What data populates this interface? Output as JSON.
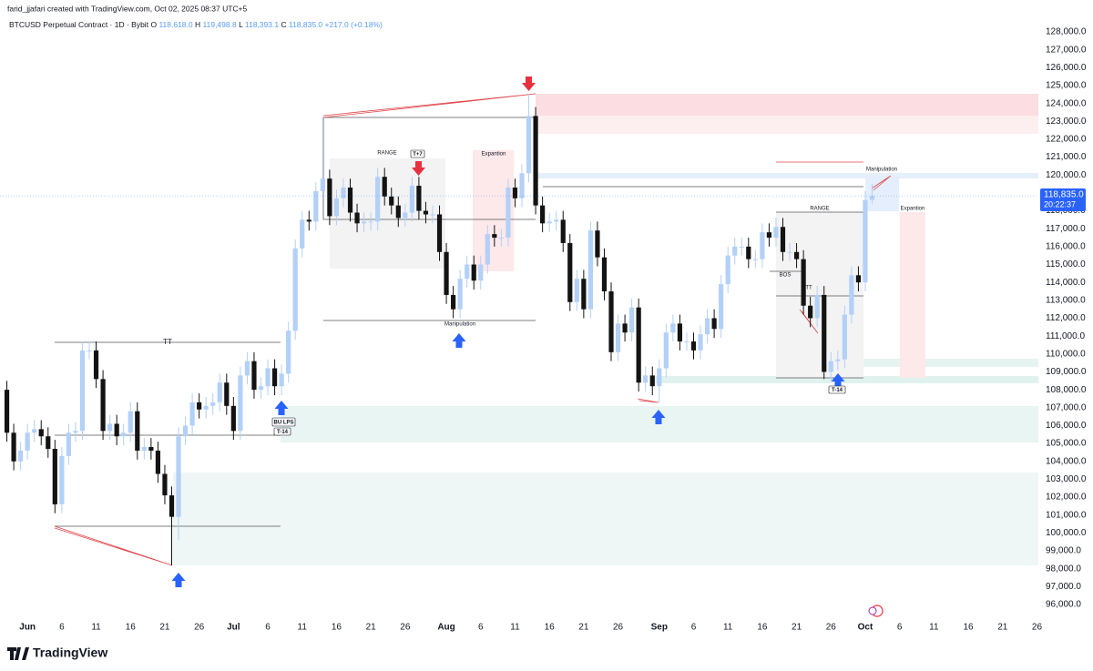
{
  "header": {
    "credit": "farid_jjafari created with TradingView.com, Oct 02, 2025 08:37 UTC+5"
  },
  "footer": {
    "logo": "TradingView"
  },
  "chart_data": {
    "type": "candlestick",
    "title": "BTCUSD Perpetual Contract · 1D · Bybit",
    "legend": [
      {
        "key": "O",
        "text": "118,618.0"
      },
      {
        "key": "H",
        "text": "119,498.8"
      },
      {
        "key": "L",
        "text": "118,393.1"
      },
      {
        "key": "C",
        "text": "118,835.0"
      }
    ],
    "change": "+217.0 (+0.18%)",
    "last_price_label": "118,835.0",
    "countdown": "20:22:37",
    "up_color": "#b3d0f7",
    "down_color": "#131313",
    "grid": false,
    "xlim": [
      "05-28",
      "10-27"
    ],
    "ylim": [
      96000,
      128000
    ],
    "xticks": [
      {
        "value": "06-01",
        "label": "Jun"
      },
      {
        "value": "06-06",
        "label": "6"
      },
      {
        "value": "06-11",
        "label": "11"
      },
      {
        "value": "06-16",
        "label": "16"
      },
      {
        "value": "06-21",
        "label": "21"
      },
      {
        "value": "06-26",
        "label": "26"
      },
      {
        "value": "07-01",
        "label": "Jul"
      },
      {
        "value": "07-06",
        "label": "6"
      },
      {
        "value": "07-11",
        "label": "11"
      },
      {
        "value": "07-16",
        "label": "16"
      },
      {
        "value": "07-21",
        "label": "21"
      },
      {
        "value": "07-26",
        "label": "26"
      },
      {
        "value": "08-01",
        "label": "Aug"
      },
      {
        "value": "08-06",
        "label": "6"
      },
      {
        "value": "08-11",
        "label": "11"
      },
      {
        "value": "08-16",
        "label": "16"
      },
      {
        "value": "08-21",
        "label": "21"
      },
      {
        "value": "08-26",
        "label": "26"
      },
      {
        "value": "09-01",
        "label": "Sep"
      },
      {
        "value": "09-06",
        "label": "6"
      },
      {
        "value": "09-11",
        "label": "11"
      },
      {
        "value": "09-16",
        "label": "16"
      },
      {
        "value": "09-21",
        "label": "21"
      },
      {
        "value": "09-26",
        "label": "26"
      },
      {
        "value": "10-01",
        "label": "Oct"
      },
      {
        "value": "10-06",
        "label": "6"
      },
      {
        "value": "10-11",
        "label": "11"
      },
      {
        "value": "10-16",
        "label": "16"
      },
      {
        "value": "10-21",
        "label": "21"
      },
      {
        "value": "10-26",
        "label": "26"
      }
    ],
    "yticks": [
      {
        "value": 96000,
        "label": "96,000.0"
      },
      {
        "value": 97000,
        "label": "97,000.0"
      },
      {
        "value": 98000,
        "label": "98,000.0"
      },
      {
        "value": 99000,
        "label": "99,000.0"
      },
      {
        "value": 100000,
        "label": "100,000.0"
      },
      {
        "value": 101000,
        "label": "101,000.0"
      },
      {
        "value": 102000,
        "label": "102,000.0"
      },
      {
        "value": 103000,
        "label": "103,000.0"
      },
      {
        "value": 104000,
        "label": "104,000.0"
      },
      {
        "value": 105000,
        "label": "105,000.0"
      },
      {
        "value": 106000,
        "label": "106,000.0"
      },
      {
        "value": 107000,
        "label": "107,000.0"
      },
      {
        "value": 108000,
        "label": "108,000.0"
      },
      {
        "value": 109000,
        "label": "109,000.0"
      },
      {
        "value": 110000,
        "label": "110,000.0"
      },
      {
        "value": 111000,
        "label": "111,000.0"
      },
      {
        "value": 112000,
        "label": "112,000.0"
      },
      {
        "value": 113000,
        "label": "113,000.0"
      },
      {
        "value": 114000,
        "label": "114,000.0"
      },
      {
        "value": 115000,
        "label": "115,000.0"
      },
      {
        "value": 116000,
        "label": "116,000.0"
      },
      {
        "value": 117000,
        "label": "117,000.0"
      },
      {
        "value": 118000,
        "label": "118,000.0"
      },
      {
        "value": 119000,
        "label": "119,000.0"
      },
      {
        "value": 120000,
        "label": "120,000.0"
      },
      {
        "value": 121000,
        "label": "121,000.0"
      },
      {
        "value": 122000,
        "label": "122,000.0"
      },
      {
        "value": 123000,
        "label": "123,000.0"
      },
      {
        "value": 124000,
        "label": "124,000.0"
      },
      {
        "value": 125000,
        "label": "125,000.0"
      },
      {
        "value": 126000,
        "label": "126,000.0"
      },
      {
        "value": 127000,
        "label": "127,000.0"
      },
      {
        "value": 128000,
        "label": "128,000.0"
      }
    ],
    "annotations": [
      "TT",
      "BU LPS",
      "T-14",
      "RANGE",
      "T+7",
      "Expantion",
      "Manipulation",
      "RANGE",
      "Manipulation",
      "Expantion",
      "BOS",
      "TT",
      "T-14"
    ],
    "x": [
      "05-29",
      "05-30",
      "05-31",
      "06-01",
      "06-02",
      "06-03",
      "06-04",
      "06-05",
      "06-06",
      "06-07",
      "06-08",
      "06-09",
      "06-10",
      "06-11",
      "06-12",
      "06-13",
      "06-14",
      "06-15",
      "06-16",
      "06-17",
      "06-18",
      "06-19",
      "06-20",
      "06-21",
      "06-22",
      "06-23",
      "06-24",
      "06-25",
      "06-26",
      "06-27",
      "06-28",
      "06-29",
      "06-30",
      "07-01",
      "07-02",
      "07-03",
      "07-04",
      "07-05",
      "07-06",
      "07-07",
      "07-08",
      "07-09",
      "07-10",
      "07-11",
      "07-12",
      "07-13",
      "07-14",
      "07-15",
      "07-16",
      "07-17",
      "07-18",
      "07-19",
      "07-20",
      "07-21",
      "07-22",
      "07-23",
      "07-24",
      "07-25",
      "07-26",
      "07-27",
      "07-28",
      "07-29",
      "07-30",
      "07-31",
      "08-01",
      "08-02",
      "08-03",
      "08-04",
      "08-05",
      "08-06",
      "08-07",
      "08-08",
      "08-09",
      "08-10",
      "08-11",
      "08-12",
      "08-13",
      "08-14",
      "08-15",
      "08-16",
      "08-17",
      "08-18",
      "08-19",
      "08-20",
      "08-21",
      "08-22",
      "08-23",
      "08-24",
      "08-25",
      "08-26",
      "08-27",
      "08-28",
      "08-29",
      "08-30",
      "08-31",
      "09-01",
      "09-02",
      "09-03",
      "09-04",
      "09-05",
      "09-06",
      "09-07",
      "09-08",
      "09-09",
      "09-10",
      "09-11",
      "09-12",
      "09-13",
      "09-14",
      "09-15",
      "09-16",
      "09-17",
      "09-18",
      "09-19",
      "09-20",
      "09-21",
      "09-22",
      "09-23",
      "09-24",
      "09-25",
      "09-26",
      "09-27",
      "09-28",
      "09-29",
      "09-30",
      "10-01",
      "10-02"
    ],
    "open": [
      108000,
      105600,
      104000,
      104600,
      105600,
      105800,
      105400,
      104700,
      101600,
      104300,
      105600,
      105700,
      110200,
      110200,
      108600,
      105700,
      106100,
      105400,
      105600,
      106800,
      104600,
      104800,
      104600,
      103300,
      102100,
      100900,
      105400,
      106000,
      107300,
      106900,
      107100,
      107300,
      108400,
      107100,
      105700,
      108800,
      109600,
      108000,
      108200,
      109200,
      108200,
      108900,
      111300,
      115900,
      117500,
      117400,
      119100,
      119800,
      117700,
      118700,
      119300,
      117900,
      117300,
      117400,
      117400,
      119900,
      118800,
      118300,
      117600,
      117900,
      119400,
      118000,
      117800,
      117800,
      115700,
      113300,
      112500,
      114200,
      115000,
      114100,
      115000,
      116700,
      116500,
      116500,
      119300,
      118700,
      120100,
      123300,
      118300,
      117300,
      117400,
      117500,
      116200,
      112900,
      114200,
      112500,
      116900,
      115400,
      113500,
      110100,
      111700,
      111200,
      112600,
      108400,
      108800,
      108200,
      109200,
      111200,
      111700,
      110700,
      110700,
      110200,
      111100,
      112000,
      111400,
      113900,
      115500,
      116000,
      116000,
      115300,
      115300,
      116800,
      116500,
      117100,
      115700,
      115700,
      115300,
      112700,
      112000,
      113300,
      109000,
      109600,
      109700,
      112200,
      114400,
      114000,
      118618
    ],
    "high": [
      108500,
      106100,
      105100,
      106100,
      106300,
      106300,
      105900,
      105200,
      104800,
      106100,
      106200,
      110700,
      110700,
      110700,
      109100,
      106600,
      106600,
      106100,
      107300,
      107300,
      105300,
      105300,
      105100,
      103800,
      102600,
      105900,
      106500,
      107800,
      107800,
      107600,
      107800,
      108900,
      108900,
      107600,
      109300,
      110100,
      110100,
      108700,
      109700,
      109700,
      109400,
      111800,
      116400,
      118000,
      118000,
      119600,
      123200,
      120300,
      119200,
      119800,
      119800,
      118400,
      117900,
      117900,
      120400,
      120400,
      119300,
      118800,
      118400,
      119900,
      119900,
      118500,
      118300,
      118300,
      116200,
      113800,
      114700,
      115500,
      115500,
      115500,
      117200,
      117200,
      117000,
      119800,
      119800,
      120600,
      124500,
      123800,
      118800,
      117900,
      118000,
      118000,
      116700,
      114700,
      114700,
      117400,
      117400,
      115900,
      114000,
      112200,
      112200,
      113100,
      113100,
      109300,
      109300,
      109700,
      111700,
      112200,
      112200,
      111200,
      111200,
      111600,
      112500,
      112500,
      114400,
      116000,
      116500,
      116500,
      116500,
      115800,
      117300,
      117300,
      117600,
      117600,
      116200,
      116200,
      115800,
      113200,
      113800,
      113800,
      110100,
      110200,
      112700,
      114900,
      114900,
      119100,
      119498.8
    ],
    "low": [
      105100,
      103500,
      103500,
      104100,
      105100,
      104900,
      104200,
      101100,
      101100,
      103800,
      105100,
      105200,
      109700,
      108100,
      105200,
      105200,
      104900,
      104900,
      105100,
      104100,
      104100,
      104100,
      102800,
      101600,
      98200,
      99600,
      104900,
      105500,
      106400,
      106400,
      106600,
      106800,
      106600,
      105200,
      105200,
      108300,
      107500,
      107500,
      107700,
      107700,
      107700,
      108400,
      110800,
      115400,
      116900,
      116900,
      118600,
      117200,
      117200,
      118200,
      117400,
      116800,
      116800,
      116900,
      116900,
      118300,
      117800,
      117100,
      117100,
      117400,
      117500,
      117300,
      117300,
      115200,
      112800,
      112000,
      112000,
      113700,
      113600,
      113600,
      114500,
      116000,
      116000,
      116000,
      118200,
      118200,
      119600,
      117800,
      116800,
      116800,
      116900,
      115700,
      112400,
      112400,
      112000,
      112000,
      114900,
      113000,
      109600,
      109600,
      110700,
      110700,
      107900,
      107900,
      107700,
      107300,
      108700,
      110700,
      110200,
      110200,
      109700,
      109700,
      110600,
      110900,
      110900,
      113400,
      115000,
      115500,
      114800,
      114800,
      114800,
      116000,
      116000,
      115200,
      115200,
      114800,
      112200,
      111500,
      111500,
      108600,
      108500,
      109100,
      109200,
      111700,
      113500,
      113500,
      118393.1
    ],
    "close": [
      105600,
      104000,
      104600,
      105600,
      105800,
      105400,
      104700,
      101600,
      104300,
      105600,
      105700,
      110200,
      110200,
      108600,
      105700,
      106100,
      105400,
      105600,
      106800,
      104600,
      104800,
      104600,
      103300,
      102100,
      100900,
      105400,
      106000,
      107300,
      106900,
      107100,
      107300,
      108400,
      107100,
      105700,
      108800,
      109600,
      108000,
      108200,
      109200,
      108200,
      108900,
      111300,
      115900,
      117500,
      117400,
      119100,
      119800,
      117700,
      118700,
      119300,
      117900,
      117300,
      117400,
      117400,
      119900,
      118800,
      118300,
      117600,
      117900,
      119400,
      118000,
      117800,
      117800,
      115700,
      113300,
      112500,
      114200,
      115000,
      114100,
      115000,
      116700,
      116500,
      116500,
      119300,
      118700,
      120100,
      123300,
      118300,
      117300,
      117400,
      117500,
      116200,
      112900,
      114200,
      112500,
      116900,
      115400,
      113500,
      110100,
      111700,
      111200,
      112600,
      108400,
      108800,
      108200,
      109200,
      111200,
      111700,
      110700,
      110700,
      110200,
      111100,
      112000,
      111400,
      113900,
      115500,
      116000,
      116000,
      115300,
      115300,
      116800,
      116500,
      117100,
      115700,
      115700,
      115300,
      112700,
      112000,
      113300,
      109000,
      109600,
      109700,
      112200,
      114400,
      114000,
      118600,
      118835
    ]
  }
}
